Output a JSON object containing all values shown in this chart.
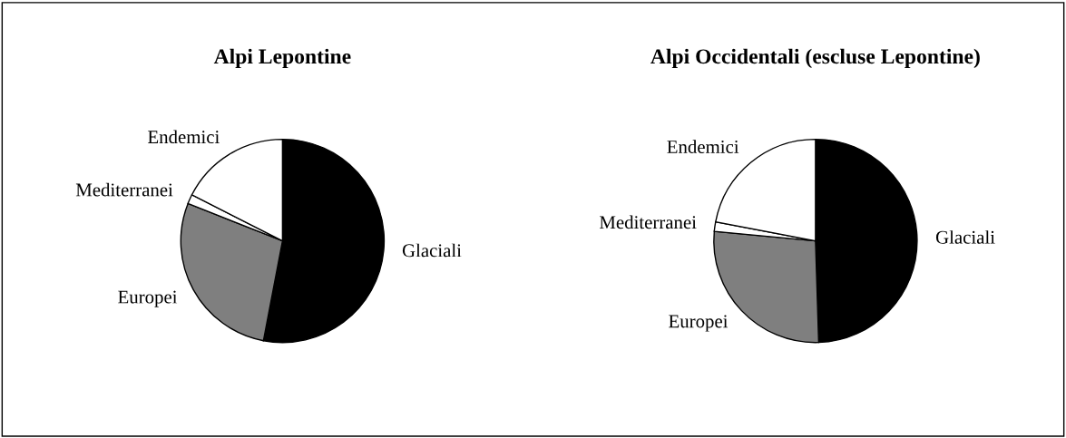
{
  "chart_data": [
    {
      "type": "pie",
      "title": "Alpi Lepontine",
      "categories": [
        "Glaciali",
        "Europei",
        "Mediterranei",
        "Endemici"
      ],
      "values": [
        53,
        28,
        1.5,
        17.5
      ],
      "colors": [
        "#000000",
        "#7f7f7f",
        "#ffffff",
        "#ffffff"
      ]
    },
    {
      "type": "pie",
      "title": "Alpi Occidentali (escluse Lepontine)",
      "categories": [
        "Glaciali",
        "Europei",
        "Mediterranei",
        "Endemici"
      ],
      "values": [
        49.5,
        27,
        1.5,
        22
      ],
      "colors": [
        "#000000",
        "#7f7f7f",
        "#ffffff",
        "#ffffff"
      ]
    }
  ]
}
